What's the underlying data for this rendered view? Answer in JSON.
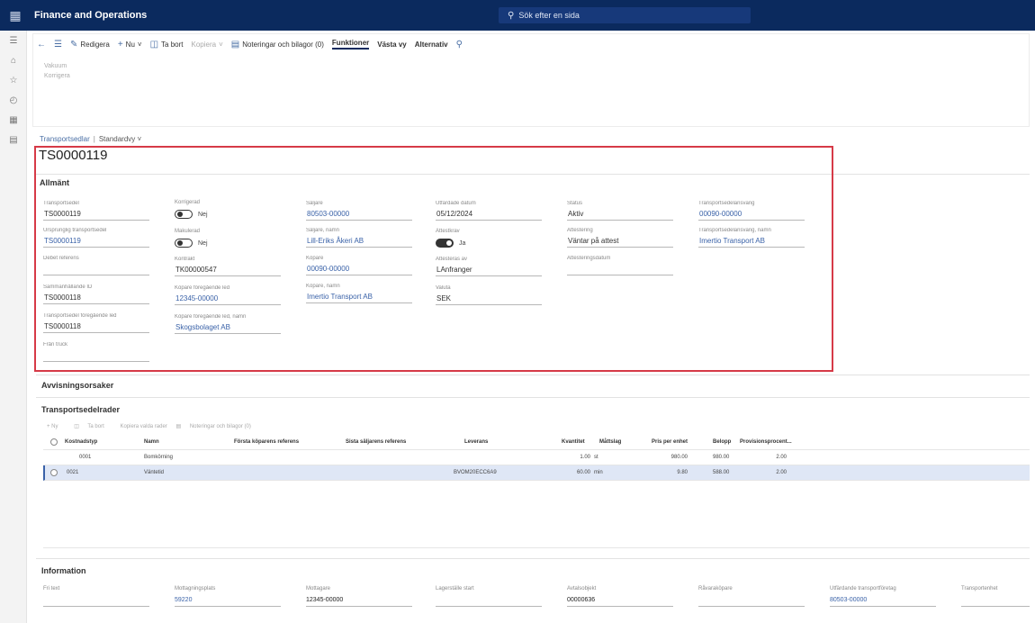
{
  "app": {
    "title": "Finance and Operations",
    "search_placeholder": "Sök efter en sida"
  },
  "nav_icons": [
    "home-icon",
    "star-icon",
    "clock-icon",
    "grid-icon",
    "list-icon"
  ],
  "toolbar": {
    "back": "←",
    "edit": "Redigera",
    "new": "Nu",
    "delete": "Ta bort",
    "copy": "Kopiera",
    "notes": "Noteringar och bilagor (0)",
    "functions": "Funktioner",
    "view": "Västa vy",
    "options": "Alternativ"
  },
  "subactions": [
    "Vakuum",
    "Korrigera"
  ],
  "breadcrumb": {
    "list": "Transportsedlar",
    "view": "Standardvy"
  },
  "record_id": "TS0000119",
  "general": {
    "title": "Allmänt",
    "col1": [
      {
        "label": "Transportsedel",
        "value": "TS0000119"
      },
      {
        "label": "Ursprunglig transportsedel",
        "value": "TS0000119"
      },
      {
        "label": "Debet referens",
        "value": ""
      },
      {
        "label": "Sammanhållande ID",
        "value": "TS0000118"
      },
      {
        "label": "Transportsedel föregående led",
        "value": "TS0000118"
      },
      {
        "label": "Från truck",
        "value": ""
      }
    ],
    "korrigerad": {
      "label": "Korrigerad",
      "value": "Nej"
    },
    "makulerad": {
      "label": "Makulerad",
      "value": "Nej"
    },
    "col2": [
      {
        "label": "Kontrakt",
        "value": "TK00000547"
      },
      {
        "label": "Köpare föregående led",
        "value": "12345-00000"
      },
      {
        "label": "Köpare föregående led, namn",
        "value": "Skogsbolaget AB"
      }
    ],
    "col3": [
      {
        "label": "Säljare",
        "value": "80503-00000"
      },
      {
        "label": "Säljare, namn",
        "value": "Lill-Eriks Åkeri AB"
      },
      {
        "label": "Köpare",
        "value": "00090-00000"
      },
      {
        "label": "Köpare, namn",
        "value": "Imertio Transport AB"
      }
    ],
    "col4": [
      {
        "label": "Utfärdade datum",
        "value": "05/12/2024"
      }
    ],
    "attestkrav": {
      "label": "Attestkrav",
      "value": "Ja"
    },
    "col4b": [
      {
        "label": "Attesteras av",
        "value": "LAnfranger"
      },
      {
        "label": "Valuta",
        "value": "SEK"
      }
    ],
    "col5": [
      {
        "label": "Status",
        "value": "Aktiv"
      },
      {
        "label": "Attestering",
        "value": "Väntar på attest"
      },
      {
        "label": "Attesteringsdatum",
        "value": ""
      }
    ],
    "col6": [
      {
        "label": "Transportsedelansvarig",
        "value": "00090-00000"
      },
      {
        "label": "Transportsedelansvarig, namn",
        "value": "Imertio Transport AB"
      }
    ]
  },
  "sections": {
    "rejection": "Avvisningsorsaker",
    "lines": "Transportsedelrader",
    "information": "Information"
  },
  "lines_toolbar": [
    "Ny",
    "Ta bort",
    "Kopiera valda rader",
    "Noteringar och bilagor (0)"
  ],
  "lines": {
    "headers": [
      "Kostnadstyp",
      "Namn",
      "Första köparens referens",
      "Sista säljarens referens",
      "Leverans",
      "Kvantitet",
      "Måttslag",
      "Pris per enhet",
      "Belopp",
      "Provisionsprocent..."
    ],
    "rows": [
      [
        "0001",
        "Bomkörning",
        "",
        "",
        "",
        "1.00",
        "st",
        "980.00",
        "980.00",
        "2.00"
      ],
      [
        "0021",
        "Väntetid",
        "",
        "",
        "BVOM20ECC6A9",
        "60.00",
        "min",
        "9.80",
        "588.00",
        "2.00"
      ]
    ]
  },
  "info": [
    {
      "label": "Fri text",
      "value": ""
    },
    {
      "label": "Mottagningsplats",
      "value": "59220"
    },
    {
      "label": "Mottagare",
      "value": "12345-00000"
    },
    {
      "label": "Lagerställe start",
      "value": ""
    },
    {
      "label": "Avtalsobjekt",
      "value": "00000636"
    },
    {
      "label": "Råvaraköpare",
      "value": ""
    },
    {
      "label": "Utfärdande transportföretag",
      "value": "80503-00000"
    },
    {
      "label": "Transportenhet",
      "value": ""
    }
  ]
}
